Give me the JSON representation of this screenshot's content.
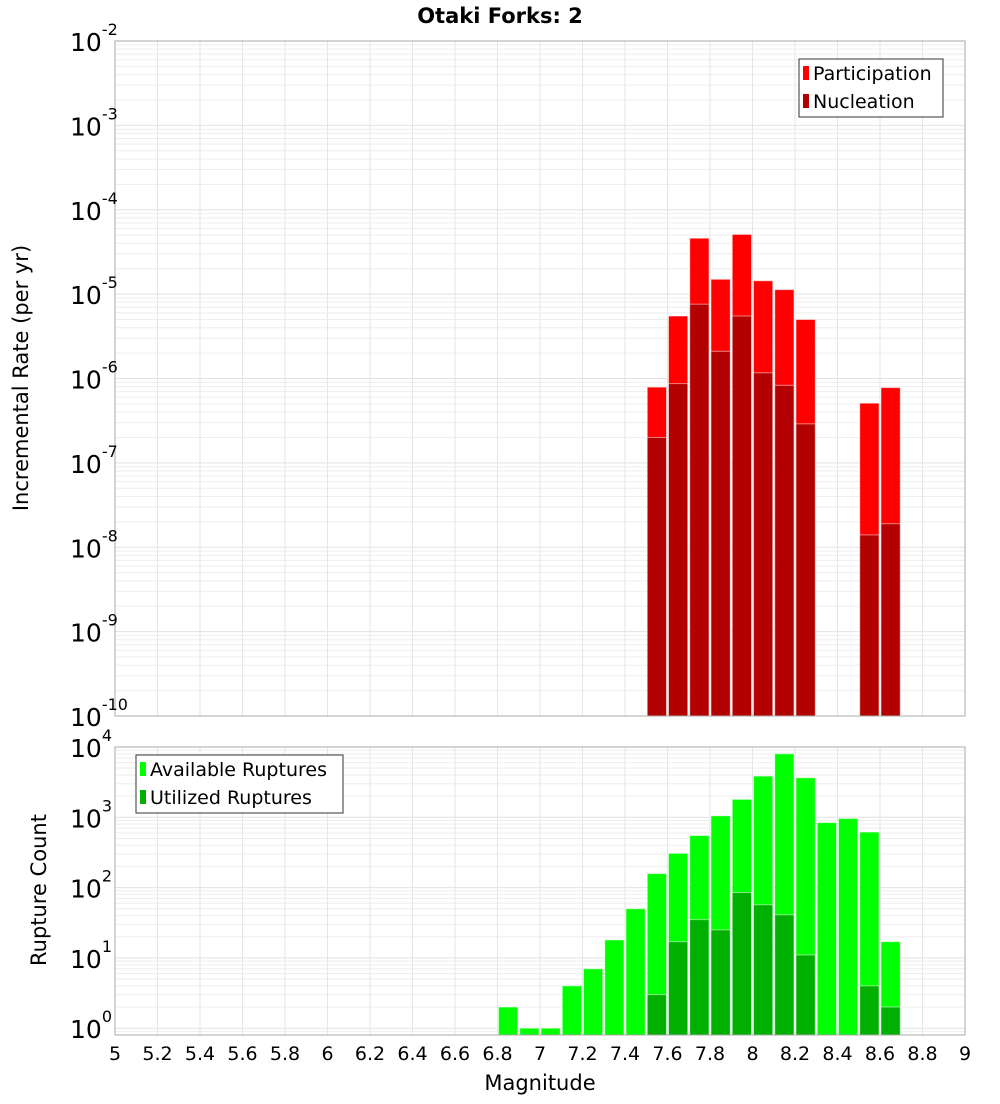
{
  "chart_data": [
    {
      "type": "bar",
      "title": "Otaki Forks: 2",
      "xlabel": "Magnitude",
      "ylabel": "Incremental Rate (per yr)",
      "yscale": "log",
      "ylim": [
        1e-10,
        0.01
      ],
      "xlim": [
        5,
        9
      ],
      "grid": true,
      "legend_position": "top-right",
      "bin_width": 0.1,
      "x": [
        7.55,
        7.65,
        7.75,
        7.85,
        7.95,
        8.05,
        8.15,
        8.25,
        8.55,
        8.65
      ],
      "series": [
        {
          "name": "Participation",
          "color": "#ff0000",
          "values": [
            7.9e-07,
            5.5e-06,
            4.6e-05,
            1.5e-05,
            5.1e-05,
            1.44e-05,
            1.13e-05,
            5e-06,
            5.1e-07,
            7.8e-07
          ]
        },
        {
          "name": "Nucleation",
          "color": "#b30000",
          "values": [
            2e-07,
            8.7e-07,
            7.6e-06,
            2.1e-06,
            5.5e-06,
            1.17e-06,
            8.3e-07,
            2.9e-07,
            1.4e-08,
            1.9e-08
          ]
        }
      ],
      "ytick_exponents": [
        -10,
        -9,
        -8,
        -7,
        -6,
        -5,
        -4,
        -3,
        -2
      ]
    },
    {
      "type": "bar",
      "xlabel": "Magnitude",
      "ylabel": "Rupture Count",
      "yscale": "log",
      "ylim": [
        0.8,
        10000
      ],
      "xlim": [
        5,
        9
      ],
      "grid": true,
      "legend_position": "top-left",
      "bin_width": 0.1,
      "x": [
        6.85,
        6.95,
        7.05,
        7.15,
        7.25,
        7.35,
        7.45,
        7.55,
        7.65,
        7.75,
        7.85,
        7.95,
        8.05,
        8.15,
        8.25,
        8.35,
        8.45,
        8.55,
        8.65
      ],
      "series": [
        {
          "name": "Available Ruptures",
          "color": "#00ff00",
          "values": [
            2,
            1,
            1,
            4,
            7,
            18,
            50,
            158,
            307,
            550,
            1050,
            1800,
            3850,
            8000,
            3650,
            840,
            960,
            616,
            17
          ]
        },
        {
          "name": "Utilized Ruptures",
          "color": "#00b000",
          "values": [
            0,
            0,
            0,
            0,
            0,
            0,
            0,
            3,
            17,
            35,
            25,
            85,
            57,
            41,
            11,
            0,
            0,
            4,
            2
          ]
        }
      ],
      "ytick_exponents": [
        0,
        1,
        2,
        3,
        4
      ],
      "xticks": [
        "5",
        "5.2",
        "5.4",
        "5.6",
        "5.8",
        "6",
        "6.2",
        "6.4",
        "6.6",
        "6.8",
        "7",
        "7.2",
        "7.4",
        "7.6",
        "7.8",
        "8",
        "8.2",
        "8.4",
        "8.6",
        "8.8",
        "9"
      ]
    }
  ]
}
